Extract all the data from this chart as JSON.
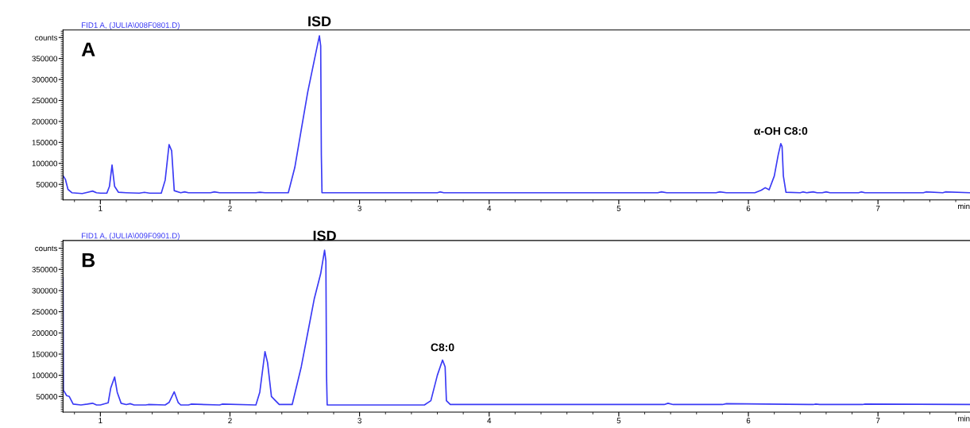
{
  "chart_data": [
    {
      "type": "line",
      "title": "FID1 A, (JULIA\\008F0801.D)",
      "xlabel": "min",
      "annotations": [
        "A",
        {
          "text": "ISD",
          "x": 2.69,
          "y": 404000
        },
        {
          "text": "α-OH C8:0",
          "x": 6.25,
          "y": 147000
        }
      ],
      "xlim": [
        0.712,
        7.71
      ],
      "ylim": [
        13000,
        418000
      ],
      "xticks": [
        1,
        2,
        3,
        4,
        5,
        6,
        7
      ],
      "yticks": [
        50000,
        100000,
        150000,
        200000,
        250000,
        300000,
        350000,
        {
          "value": 400000,
          "label": "counts"
        }
      ],
      "grid": false,
      "legend": false,
      "tick_labels": "xy",
      "series": [
        {
          "color": "#3a3af5",
          "x": [
            0.712,
            0.73,
            0.75,
            0.78,
            0.82,
            0.86,
            0.9,
            0.94,
            0.97,
            1.0,
            1.05,
            1.07,
            1.09,
            1.11,
            1.14,
            1.2,
            1.3,
            1.34,
            1.38,
            1.47,
            1.5,
            1.53,
            1.55,
            1.57,
            1.62,
            1.65,
            1.68,
            1.85,
            1.88,
            1.92,
            2.2,
            2.23,
            2.27,
            2.45,
            2.5,
            2.55,
            2.6,
            2.65,
            2.69,
            2.7,
            2.705,
            2.71,
            3.0,
            3.6,
            3.62,
            3.65,
            5.3,
            5.33,
            5.37,
            5.75,
            5.78,
            5.83,
            6.05,
            6.1,
            6.13,
            6.16,
            6.2,
            6.23,
            6.25,
            6.26,
            6.27,
            6.29,
            6.4,
            6.42,
            6.45,
            6.5,
            6.53,
            6.57,
            6.6,
            6.63,
            6.85,
            6.87,
            6.9,
            7.35,
            7.37,
            7.5,
            7.52,
            7.71
          ],
          "values": [
            71000,
            62000,
            38000,
            30000,
            29000,
            28000,
            31000,
            34000,
            30000,
            29000,
            29000,
            45000,
            96000,
            45000,
            31000,
            30000,
            29000,
            31000,
            29000,
            29000,
            60000,
            145000,
            130000,
            35000,
            30000,
            32000,
            30000,
            30000,
            32000,
            30000,
            30000,
            31000,
            30000,
            30000,
            90000,
            180000,
            270000,
            345000,
            404000,
            380000,
            120000,
            30000,
            30000,
            30000,
            32000,
            30000,
            30000,
            32000,
            30000,
            30000,
            32000,
            30000,
            30000,
            36000,
            42000,
            37000,
            70000,
            120000,
            147000,
            140000,
            70000,
            31000,
            30000,
            32000,
            30000,
            32000,
            30000,
            30000,
            32000,
            30000,
            30000,
            32000,
            30000,
            30000,
            32000,
            30000,
            32000,
            30000
          ]
        }
      ]
    },
    {
      "type": "line",
      "title": "FID1 A, (JULIA\\009F0901.D)",
      "xlabel": "min",
      "annotations": [
        "B",
        {
          "text": "ISD",
          "x": 2.73,
          "y": 395000
        },
        {
          "text": "C8:0",
          "x": 3.64,
          "y": 136000
        }
      ],
      "xlim": [
        0.712,
        7.71
      ],
      "ylim": [
        13000,
        418000
      ],
      "xticks": [
        1,
        2,
        3,
        4,
        5,
        6,
        7
      ],
      "yticks": [
        50000,
        100000,
        150000,
        200000,
        250000,
        300000,
        350000,
        {
          "value": 400000,
          "label": "counts"
        }
      ],
      "grid": false,
      "legend": false,
      "tick_labels": "xy",
      "series": [
        {
          "color": "#3a3af5",
          "x": [
            0.712,
            0.715,
            0.74,
            0.76,
            0.79,
            0.85,
            0.9,
            0.94,
            0.97,
            1.0,
            1.06,
            1.08,
            1.11,
            1.13,
            1.16,
            1.2,
            1.23,
            1.26,
            1.35,
            1.37,
            1.5,
            1.53,
            1.57,
            1.6,
            1.62,
            1.68,
            1.7,
            1.92,
            1.94,
            2.2,
            2.23,
            2.27,
            2.29,
            2.32,
            2.38,
            2.48,
            2.55,
            2.6,
            2.65,
            2.7,
            2.73,
            2.74,
            2.745,
            2.75,
            3.0,
            3.5,
            3.55,
            3.6,
            3.64,
            3.66,
            3.67,
            3.7,
            5.35,
            5.38,
            5.42,
            5.8,
            5.83,
            6.5,
            6.52,
            6.55,
            6.88,
            6.9,
            7.71
          ],
          "values": [
            330000,
            65000,
            52000,
            50000,
            32000,
            30000,
            32000,
            34000,
            30000,
            30000,
            35000,
            70000,
            96000,
            60000,
            34000,
            31000,
            33000,
            30000,
            30000,
            31000,
            30000,
            36000,
            61000,
            36000,
            30000,
            30000,
            32000,
            30000,
            32000,
            30000,
            60000,
            156000,
            130000,
            50000,
            31000,
            31000,
            120000,
            200000,
            280000,
            340000,
            395000,
            370000,
            100000,
            30000,
            30000,
            30000,
            40000,
            100000,
            136000,
            120000,
            40000,
            31000,
            31000,
            34000,
            31000,
            31000,
            33000,
            31000,
            32000,
            31000,
            31000,
            32000,
            31000
          ]
        }
      ]
    }
  ]
}
